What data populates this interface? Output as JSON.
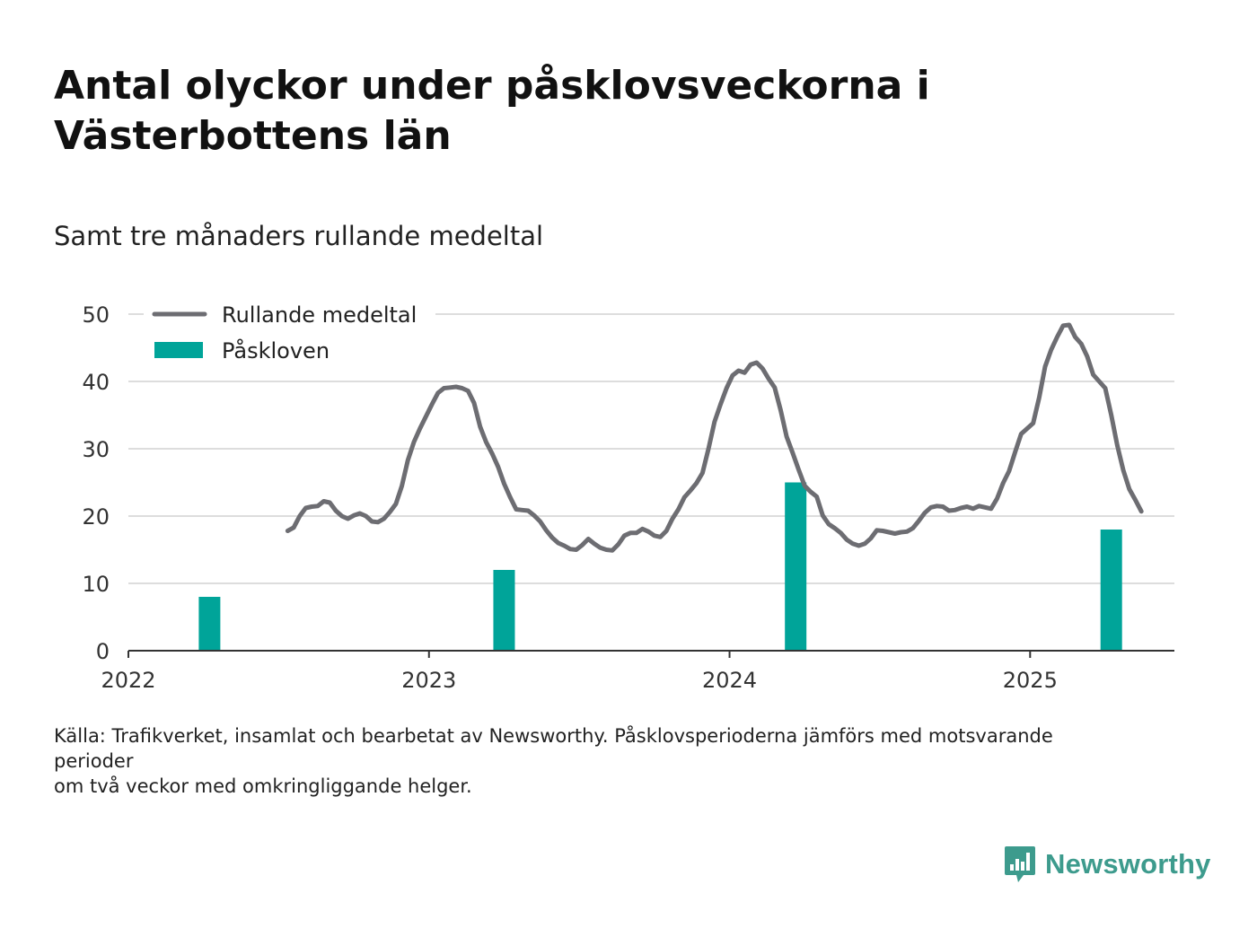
{
  "title": "Antal olyckor under påsklovsveckorna i Västerbottens län",
  "subtitle": "Samt tre månaders rullande medeltal",
  "source_lines": [
    "Källa: Trafikverket, insamlat och bearbetat av Newsworthy. Påsklovsperioderna jämförs med motsvarande",
    "perioder",
    "om två veckor med omkringliggande helger."
  ],
  "logo_text": "Newsworthy",
  "colors": {
    "line": "#6d6d72",
    "bar": "#00a499",
    "grid": "#dddddd",
    "axis": "#333333",
    "brand": "#3d9b8d"
  },
  "chart_data": {
    "type": "bar+line",
    "xlim": [
      2022.0,
      2025.48
    ],
    "ylim": [
      0,
      50
    ],
    "y_ticks": [
      0,
      10,
      20,
      30,
      40,
      50
    ],
    "x_ticks": [
      {
        "value": 2022,
        "label": "2022"
      },
      {
        "value": 2023,
        "label": "2023"
      },
      {
        "value": 2024,
        "label": "2024"
      },
      {
        "value": 2025,
        "label": "2025"
      }
    ],
    "grid": true,
    "legend": {
      "placement": "top-left",
      "items": [
        {
          "name": "Rullande medeltal",
          "kind": "line"
        },
        {
          "name": "Påskloven",
          "kind": "bar"
        }
      ]
    },
    "series": [
      {
        "name": "Rullande medeltal",
        "kind": "line",
        "points": [
          [
            2022.53,
            17.8
          ],
          [
            2022.55,
            18.3
          ],
          [
            2022.57,
            20.0
          ],
          [
            2022.59,
            21.2
          ],
          [
            2022.61,
            21.4
          ],
          [
            2022.63,
            21.5
          ],
          [
            2022.65,
            22.2
          ],
          [
            2022.67,
            22.0
          ],
          [
            2022.69,
            20.8
          ],
          [
            2022.71,
            20.0
          ],
          [
            2022.73,
            19.6
          ],
          [
            2022.75,
            20.1
          ],
          [
            2022.77,
            20.4
          ],
          [
            2022.79,
            20.0
          ],
          [
            2022.81,
            19.2
          ],
          [
            2022.83,
            19.1
          ],
          [
            2022.85,
            19.6
          ],
          [
            2022.87,
            20.6
          ],
          [
            2022.89,
            21.8
          ],
          [
            2022.91,
            24.5
          ],
          [
            2022.93,
            28.3
          ],
          [
            2022.95,
            31.0
          ],
          [
            2022.97,
            33.0
          ],
          [
            2022.99,
            34.8
          ],
          [
            2023.01,
            36.6
          ],
          [
            2023.03,
            38.3
          ],
          [
            2023.05,
            39.0
          ],
          [
            2023.07,
            39.1
          ],
          [
            2023.09,
            39.2
          ],
          [
            2023.11,
            39.0
          ],
          [
            2023.13,
            38.6
          ],
          [
            2023.15,
            36.8
          ],
          [
            2023.17,
            33.3
          ],
          [
            2023.19,
            31.0
          ],
          [
            2023.21,
            29.3
          ],
          [
            2023.23,
            27.3
          ],
          [
            2023.25,
            24.8
          ],
          [
            2023.27,
            22.8
          ],
          [
            2023.29,
            21.0
          ],
          [
            2023.31,
            20.9
          ],
          [
            2023.33,
            20.8
          ],
          [
            2023.35,
            20.1
          ],
          [
            2023.37,
            19.2
          ],
          [
            2023.39,
            17.9
          ],
          [
            2023.41,
            16.8
          ],
          [
            2023.43,
            16.0
          ],
          [
            2023.45,
            15.6
          ],
          [
            2023.47,
            15.1
          ],
          [
            2023.49,
            15.0
          ],
          [
            2023.51,
            15.7
          ],
          [
            2023.53,
            16.6
          ],
          [
            2023.55,
            15.9
          ],
          [
            2023.57,
            15.3
          ],
          [
            2023.59,
            15.0
          ],
          [
            2023.61,
            14.9
          ],
          [
            2023.63,
            15.8
          ],
          [
            2023.65,
            17.1
          ],
          [
            2023.67,
            17.5
          ],
          [
            2023.69,
            17.5
          ],
          [
            2023.71,
            18.1
          ],
          [
            2023.73,
            17.7
          ],
          [
            2023.75,
            17.1
          ],
          [
            2023.77,
            16.9
          ],
          [
            2023.79,
            17.8
          ],
          [
            2023.81,
            19.6
          ],
          [
            2023.83,
            21.0
          ],
          [
            2023.85,
            22.8
          ],
          [
            2023.87,
            23.8
          ],
          [
            2023.89,
            24.9
          ],
          [
            2023.91,
            26.4
          ],
          [
            2023.93,
            30.0
          ],
          [
            2023.95,
            34.0
          ],
          [
            2023.97,
            36.6
          ],
          [
            2023.99,
            39.0
          ],
          [
            2024.01,
            40.9
          ],
          [
            2024.03,
            41.6
          ],
          [
            2024.05,
            41.3
          ],
          [
            2024.07,
            42.5
          ],
          [
            2024.09,
            42.8
          ],
          [
            2024.11,
            41.9
          ],
          [
            2024.13,
            40.4
          ],
          [
            2024.15,
            39.1
          ],
          [
            2024.17,
            35.7
          ],
          [
            2024.19,
            31.8
          ],
          [
            2024.21,
            29.4
          ],
          [
            2024.23,
            26.9
          ],
          [
            2024.25,
            24.5
          ],
          [
            2024.27,
            23.6
          ],
          [
            2024.29,
            22.9
          ],
          [
            2024.31,
            20.1
          ],
          [
            2024.33,
            18.8
          ],
          [
            2024.35,
            18.2
          ],
          [
            2024.37,
            17.5
          ],
          [
            2024.39,
            16.5
          ],
          [
            2024.41,
            15.9
          ],
          [
            2024.43,
            15.6
          ],
          [
            2024.45,
            15.9
          ],
          [
            2024.47,
            16.7
          ],
          [
            2024.49,
            17.9
          ],
          [
            2024.51,
            17.8
          ],
          [
            2024.53,
            17.6
          ],
          [
            2024.55,
            17.4
          ],
          [
            2024.57,
            17.6
          ],
          [
            2024.59,
            17.7
          ],
          [
            2024.61,
            18.2
          ],
          [
            2024.63,
            19.3
          ],
          [
            2024.65,
            20.5
          ],
          [
            2024.67,
            21.3
          ],
          [
            2024.69,
            21.5
          ],
          [
            2024.71,
            21.4
          ],
          [
            2024.73,
            20.8
          ],
          [
            2024.75,
            20.9
          ],
          [
            2024.77,
            21.2
          ],
          [
            2024.79,
            21.4
          ],
          [
            2024.81,
            21.1
          ],
          [
            2024.83,
            21.5
          ],
          [
            2024.85,
            21.3
          ],
          [
            2024.87,
            21.1
          ],
          [
            2024.89,
            22.6
          ],
          [
            2024.91,
            24.9
          ],
          [
            2024.93,
            26.7
          ],
          [
            2024.95,
            29.5
          ],
          [
            2024.97,
            32.2
          ],
          [
            2024.99,
            33.0
          ],
          [
            2025.01,
            33.8
          ],
          [
            2025.03,
            37.6
          ],
          [
            2025.05,
            42.2
          ],
          [
            2025.07,
            44.7
          ],
          [
            2025.09,
            46.6
          ],
          [
            2025.11,
            48.3
          ],
          [
            2025.13,
            48.4
          ],
          [
            2025.15,
            46.6
          ],
          [
            2025.17,
            45.6
          ],
          [
            2025.19,
            43.7
          ],
          [
            2025.21,
            41.0
          ],
          [
            2025.23,
            40.0
          ],
          [
            2025.25,
            39.0
          ],
          [
            2025.27,
            35.0
          ],
          [
            2025.29,
            30.5
          ],
          [
            2025.31,
            26.8
          ],
          [
            2025.33,
            24.0
          ],
          [
            2025.35,
            22.4
          ],
          [
            2025.37,
            20.7
          ]
        ]
      },
      {
        "name": "Påskloven",
        "kind": "bar",
        "points": [
          [
            2022.27,
            8
          ],
          [
            2023.25,
            12
          ],
          [
            2024.22,
            25
          ],
          [
            2025.27,
            18
          ]
        ]
      }
    ]
  }
}
